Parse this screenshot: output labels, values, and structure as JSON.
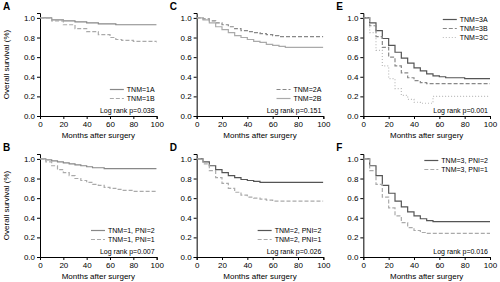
{
  "chart_data": [
    {
      "type": "step",
      "title": "A",
      "annotation": "Log rank p=0.038",
      "xlabel": "Months after surgery",
      "ylabel": "Overall survival (%)",
      "xlim": [
        0,
        100
      ],
      "ylim": [
        0.0,
        1.05
      ],
      "xticks": [
        0,
        20,
        40,
        60,
        80,
        100
      ],
      "yticks": [
        {
          "value": 0.0,
          "label": "0.0"
        },
        0.2,
        0.4,
        0.6,
        0.8,
        {
          "value": 1.0,
          "label": "1.0"
        }
      ],
      "legend": "lower right",
      "x": [
        0,
        10,
        20,
        30,
        40,
        50,
        60,
        65,
        70,
        80,
        100
      ],
      "series": [
        {
          "name": "TNM=1A",
          "color": "#888888",
          "line_style": "solid",
          "values": [
            1.0,
            0.98,
            0.97,
            0.96,
            0.95,
            0.94,
            0.94,
            0.93,
            0.93,
            0.93,
            0.93
          ]
        },
        {
          "name": "TNM=1B",
          "color": "#aaaaaa",
          "line_style": "dashed",
          "values": [
            1.0,
            0.97,
            0.93,
            0.89,
            0.86,
            0.83,
            0.8,
            0.78,
            0.77,
            0.76,
            0.75
          ]
        }
      ]
    },
    {
      "type": "step",
      "title": "C",
      "annotation": "Log rank p=0.151",
      "xlabel": "Months after surgery",
      "xlim": [
        0,
        100
      ],
      "ylim": [
        0.0,
        1.05
      ],
      "xticks": [
        0,
        20,
        40,
        60,
        80,
        100
      ],
      "yticks": [
        {
          "value": 0.0,
          "label": "0.0"
        },
        0.2,
        0.4,
        0.6,
        0.8,
        {
          "value": 1.0,
          "label": "1.0"
        }
      ],
      "legend": "lower right",
      "x": [
        0,
        5,
        10,
        15,
        20,
        25,
        30,
        35,
        40,
        45,
        50,
        55,
        60,
        65,
        70,
        80,
        100
      ],
      "series": [
        {
          "name": "TNM=2A",
          "color": "#888888",
          "line_style": "dashed",
          "values": [
            1.0,
            0.99,
            0.97,
            0.95,
            0.93,
            0.91,
            0.89,
            0.87,
            0.86,
            0.85,
            0.84,
            0.83,
            0.82,
            0.81,
            0.81,
            0.81,
            0.81
          ]
        },
        {
          "name": "TNM=2B",
          "color": "#aaaaaa",
          "line_style": "solid",
          "values": [
            1.0,
            0.98,
            0.95,
            0.91,
            0.88,
            0.85,
            0.82,
            0.8,
            0.78,
            0.76,
            0.75,
            0.73,
            0.72,
            0.71,
            0.7,
            0.7,
            0.7
          ]
        }
      ]
    },
    {
      "type": "step",
      "title": "E",
      "annotation": "Log rank p=0.001",
      "xlabel": "Months after surgery",
      "xlim": [
        0,
        100
      ],
      "ylim": [
        0.0,
        1.05
      ],
      "xticks": [
        0,
        20,
        40,
        60,
        80,
        100
      ],
      "yticks": [
        {
          "value": 0.0,
          "label": "0.0"
        },
        0.2,
        0.4,
        0.6,
        0.8,
        {
          "value": 1.0,
          "label": "1.0"
        }
      ],
      "legend": "upper right",
      "x": [
        0,
        5,
        10,
        15,
        20,
        25,
        30,
        35,
        40,
        45,
        50,
        55,
        60,
        65,
        70,
        80,
        100
      ],
      "series": [
        {
          "name": "TNM=3A",
          "color": "#555555",
          "line_style": "solid",
          "values": [
            1.0,
            0.95,
            0.87,
            0.79,
            0.72,
            0.65,
            0.59,
            0.54,
            0.49,
            0.46,
            0.43,
            0.41,
            0.4,
            0.39,
            0.39,
            0.38,
            0.38
          ]
        },
        {
          "name": "TNM=3B",
          "color": "#888888",
          "line_style": "dashed",
          "values": [
            1.0,
            0.92,
            0.81,
            0.7,
            0.6,
            0.51,
            0.44,
            0.39,
            0.36,
            0.34,
            0.33,
            0.33,
            0.33,
            0.33,
            0.33,
            0.33,
            0.33
          ]
        },
        {
          "name": "TNM=3C",
          "color": "#bbbbbb",
          "line_style": "dotted",
          "values": [
            1.0,
            0.85,
            0.67,
            0.51,
            0.38,
            0.28,
            0.21,
            0.17,
            0.14,
            0.13,
            0.13,
            0.2,
            0.2,
            0.2,
            0.2,
            0.2,
            0.2
          ]
        }
      ]
    },
    {
      "type": "step",
      "title": "B",
      "annotation": "Log rank p=0.007",
      "xlabel": "Months after surgery",
      "ylabel": "Overall survival (%)",
      "xlim": [
        0,
        100
      ],
      "ylim": [
        0.0,
        1.05
      ],
      "xticks": [
        0,
        20,
        40,
        60,
        80,
        100
      ],
      "yticks": [
        {
          "value": 0.0,
          "label": "0.0"
        },
        0.2,
        0.4,
        0.6,
        0.8,
        {
          "value": 1.0,
          "label": "1.0"
        }
      ],
      "legend": "lower right",
      "x": [
        0,
        5,
        10,
        15,
        20,
        25,
        30,
        35,
        40,
        45,
        50,
        55,
        60,
        65,
        70,
        80,
        100
      ],
      "series": [
        {
          "name": "TNM=1, PNI=2",
          "color": "#888888",
          "line_style": "solid",
          "values": [
            1.0,
            0.99,
            0.98,
            0.97,
            0.96,
            0.95,
            0.94,
            0.93,
            0.92,
            0.91,
            0.91,
            0.9,
            0.9,
            0.9,
            0.9,
            0.9,
            0.9
          ]
        },
        {
          "name": "TNM=1, PNI=1",
          "color": "#aaaaaa",
          "line_style": "dashed",
          "values": [
            1.0,
            0.97,
            0.93,
            0.89,
            0.86,
            0.83,
            0.8,
            0.78,
            0.76,
            0.74,
            0.73,
            0.71,
            0.7,
            0.69,
            0.68,
            0.67,
            0.66
          ]
        }
      ]
    },
    {
      "type": "step",
      "title": "D",
      "annotation": "Log rank p=0.026",
      "xlabel": "Months after surgery",
      "xlim": [
        0,
        100
      ],
      "ylim": [
        0.0,
        1.05
      ],
      "xticks": [
        0,
        20,
        40,
        60,
        80,
        100
      ],
      "yticks": [
        {
          "value": 0.0,
          "label": "0.0"
        },
        0.2,
        0.4,
        0.6,
        0.8,
        {
          "value": 1.0,
          "label": "1.0"
        }
      ],
      "legend": "lower right",
      "x": [
        0,
        5,
        10,
        15,
        20,
        25,
        30,
        35,
        40,
        45,
        50,
        55,
        60,
        65,
        70,
        80,
        100
      ],
      "series": [
        {
          "name": "TNM=2, PNI=2",
          "color": "#555555",
          "line_style": "solid",
          "values": [
            1.0,
            0.97,
            0.93,
            0.89,
            0.86,
            0.83,
            0.81,
            0.79,
            0.78,
            0.77,
            0.76,
            0.76,
            0.76,
            0.76,
            0.76,
            0.76,
            0.76
          ]
        },
        {
          "name": "TNM=2, PNI=1",
          "color": "#aaaaaa",
          "line_style": "dashed",
          "values": [
            1.0,
            0.95,
            0.88,
            0.81,
            0.75,
            0.7,
            0.66,
            0.63,
            0.61,
            0.6,
            0.59,
            0.58,
            0.57,
            0.57,
            0.57,
            0.57,
            0.57
          ]
        }
      ]
    },
    {
      "type": "step",
      "title": "F",
      "annotation": "Log rank p=0.016",
      "xlabel": "Months after surgery",
      "xlim": [
        0,
        100
      ],
      "ylim": [
        0.0,
        1.05
      ],
      "xticks": [
        0,
        20,
        40,
        60,
        80,
        100
      ],
      "yticks": [
        {
          "value": 0.0,
          "label": "0.0"
        },
        0.2,
        0.4,
        0.6,
        0.8,
        {
          "value": 1.0,
          "label": "1.0"
        }
      ],
      "legend": "upper right",
      "x": [
        0,
        5,
        10,
        15,
        20,
        25,
        30,
        35,
        40,
        45,
        50,
        55,
        60,
        65,
        70,
        80,
        100
      ],
      "series": [
        {
          "name": "TNM=3, PNI=2",
          "color": "#555555",
          "line_style": "solid",
          "values": [
            1.0,
            0.93,
            0.83,
            0.73,
            0.65,
            0.57,
            0.51,
            0.46,
            0.42,
            0.39,
            0.37,
            0.36,
            0.36,
            0.36,
            0.36,
            0.36,
            0.36
          ]
        },
        {
          "name": "TNM=3, PNI=1",
          "color": "#aaaaaa",
          "line_style": "dashed",
          "values": [
            1.0,
            0.88,
            0.74,
            0.61,
            0.5,
            0.42,
            0.35,
            0.3,
            0.27,
            0.25,
            0.24,
            0.24,
            0.24,
            0.24,
            0.24,
            0.24,
            0.24
          ]
        }
      ]
    }
  ]
}
